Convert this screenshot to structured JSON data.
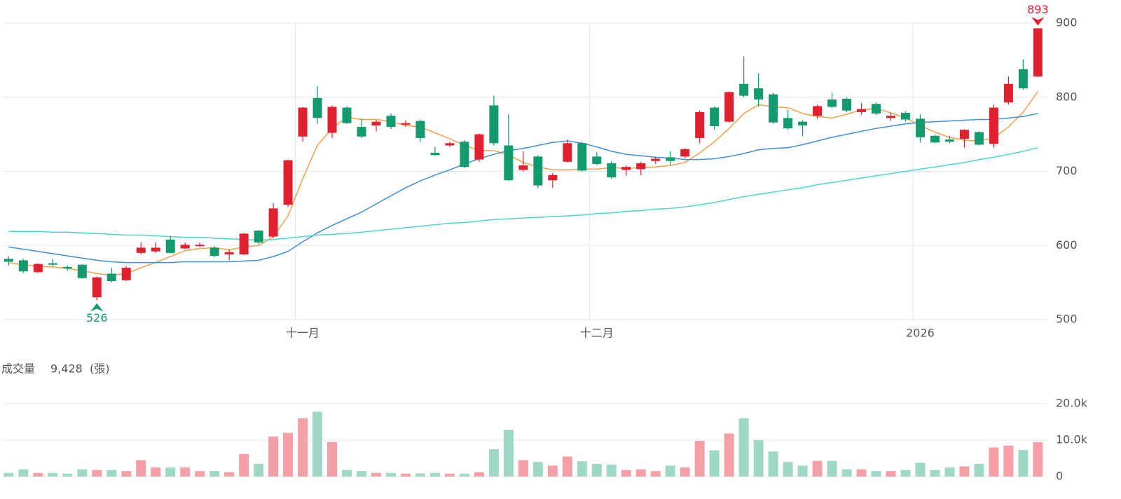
{
  "chart_data": [
    {
      "type": "candlestick",
      "categories": [
        null,
        null,
        null,
        null,
        null,
        null,
        null,
        null,
        null,
        null,
        null,
        null,
        null,
        null,
        null,
        null,
        null,
        null,
        null,
        null,
        "十一月",
        null,
        null,
        null,
        null,
        null,
        null,
        null,
        null,
        null,
        null,
        null,
        null,
        null,
        null,
        null,
        null,
        null,
        null,
        null,
        "十二月",
        null,
        null,
        null,
        null,
        null,
        null,
        null,
        null,
        null,
        null,
        null,
        null,
        null,
        null,
        null,
        null,
        null,
        null,
        null,
        null,
        null,
        "2026",
        null,
        null,
        null,
        null,
        null,
        null,
        null,
        null
      ],
      "open": [
        582,
        580,
        564,
        576,
        571,
        574,
        530,
        562,
        553,
        590,
        592,
        608,
        596,
        600,
        597,
        588,
        588,
        620,
        612,
        655,
        747,
        799,
        752,
        786,
        760,
        762,
        775,
        763,
        768,
        725,
        735,
        740,
        716,
        789,
        735,
        702,
        720,
        688,
        713,
        738,
        720,
        711,
        702,
        703,
        714,
        719,
        720,
        745,
        786,
        767,
        818,
        812,
        804,
        772,
        767,
        775,
        797,
        798,
        780,
        791,
        772,
        779,
        771,
        748,
        743,
        744,
        753,
        737,
        793,
        838,
        828
      ],
      "high": [
        585,
        582,
        576,
        582,
        573,
        575,
        558,
        570,
        572,
        604,
        604,
        613,
        604,
        604,
        599,
        595,
        617,
        621,
        657,
        716,
        787,
        815,
        789,
        788,
        771,
        769,
        778,
        769,
        770,
        733,
        740,
        742,
        751,
        802,
        777,
        727,
        722,
        698,
        743,
        740,
        726,
        714,
        708,
        713,
        720,
        727,
        731,
        782,
        788,
        808,
        855,
        832,
        806,
        783,
        769,
        790,
        806,
        800,
        792,
        793,
        779,
        781,
        777,
        750,
        748,
        757,
        754,
        790,
        828,
        851,
        893
      ],
      "low": [
        573,
        563,
        563,
        572,
        566,
        555,
        526,
        550,
        552,
        588,
        590,
        589,
        595,
        598,
        584,
        580,
        587,
        602,
        610,
        652,
        740,
        764,
        745,
        764,
        745,
        754,
        757,
        760,
        740,
        721,
        733,
        704,
        713,
        735,
        687,
        700,
        677,
        678,
        712,
        700,
        708,
        690,
        694,
        695,
        710,
        708,
        718,
        738,
        756,
        766,
        800,
        787,
        764,
        756,
        748,
        771,
        785,
        780,
        776,
        776,
        768,
        767,
        739,
        738,
        738,
        732,
        735,
        732,
        790,
        810,
        827
      ],
      "close": [
        578,
        565,
        575,
        574,
        569,
        556,
        557,
        552,
        570,
        597,
        597,
        590,
        601,
        601,
        586,
        591,
        616,
        604,
        650,
        715,
        786,
        772,
        787,
        765,
        747,
        767,
        760,
        765,
        745,
        722,
        738,
        706,
        750,
        738,
        688,
        708,
        681,
        695,
        738,
        701,
        710,
        692,
        706,
        711,
        717,
        714,
        730,
        780,
        761,
        807,
        802,
        797,
        766,
        758,
        762,
        788,
        787,
        782,
        784,
        778,
        775,
        770,
        746,
        739,
        740,
        756,
        736,
        786,
        818,
        812,
        893
      ],
      "up_color": "#e0202e",
      "down_color": "#139a6e",
      "series": [
        {
          "color": "#f5a04b",
          "values": [
            577,
            574,
            572,
            571,
            569,
            566,
            562,
            560,
            562,
            570,
            577,
            585,
            593,
            596,
            597,
            594,
            598,
            600,
            612,
            640,
            690,
            735,
            758,
            773,
            770,
            770,
            767,
            762,
            760,
            752,
            744,
            735,
            728,
            728,
            722,
            712,
            706,
            702,
            702,
            703,
            703,
            705,
            704,
            705,
            706,
            708,
            712,
            725,
            740,
            758,
            778,
            790,
            787,
            786,
            778,
            774,
            772,
            777,
            783,
            785,
            779,
            772,
            762,
            753,
            746,
            742,
            741,
            745,
            760,
            780,
            808
          ]
        },
        {
          "color": "#3f8fdc",
          "values": [
            598,
            595,
            592,
            589,
            586,
            583,
            580,
            578,
            577,
            577,
            577,
            577,
            578,
            578,
            578,
            578,
            579,
            580,
            585,
            592,
            605,
            617,
            627,
            636,
            645,
            656,
            667,
            678,
            687,
            695,
            702,
            710,
            717,
            723,
            728,
            731,
            735,
            739,
            741,
            738,
            733,
            727,
            723,
            721,
            719,
            718,
            716,
            716,
            717,
            720,
            724,
            729,
            731,
            732,
            736,
            741,
            746,
            750,
            754,
            758,
            761,
            764,
            766,
            767,
            768,
            769,
            770,
            770,
            772,
            774,
            778
          ]
        },
        {
          "color": "#4dd6cc",
          "values": [
            619,
            619,
            619,
            618,
            618,
            617,
            616,
            615,
            614,
            614,
            613,
            612,
            611,
            611,
            610,
            609,
            608,
            607,
            608,
            610,
            612,
            614,
            615,
            616,
            618,
            620,
            622,
            624,
            626,
            628,
            630,
            631,
            633,
            635,
            636,
            637,
            638,
            639,
            640,
            641,
            643,
            644,
            646,
            647,
            649,
            650,
            652,
            655,
            658,
            662,
            666,
            669,
            672,
            675,
            678,
            682,
            685,
            688,
            691,
            694,
            697,
            700,
            703,
            706,
            709,
            712,
            716,
            719,
            723,
            727,
            732
          ]
        }
      ],
      "ylim": [
        500,
        900
      ],
      "yticks": [
        500,
        600,
        700,
        800,
        900
      ],
      "grid": true
    },
    {
      "type": "bar",
      "title": "成交量",
      "unit": "(張)",
      "values": [
        1000,
        2000,
        1000,
        1000,
        800,
        2000,
        1800,
        1800,
        1500,
        4500,
        2500,
        2500,
        2500,
        1500,
        1500,
        1200,
        6200,
        3500,
        11000,
        12000,
        16000,
        17800,
        9500,
        1800,
        1500,
        1000,
        1000,
        800,
        900,
        1000,
        800,
        800,
        1200,
        7500,
        12800,
        4500,
        4000,
        3000,
        5500,
        4200,
        3500,
        3300,
        1800,
        2000,
        1500,
        3000,
        2500,
        9800,
        7200,
        11800,
        16000,
        10000,
        6900,
        4000,
        3000,
        4300,
        4300,
        2000,
        2000,
        1500,
        1500,
        1800,
        3800,
        1800,
        2500,
        2800,
        3500,
        8000,
        8500,
        7300,
        9428
      ],
      "value_labels": [
        null,
        null,
        null,
        null,
        null,
        null,
        null,
        null,
        null,
        null,
        null,
        null,
        null,
        null,
        null,
        null,
        null,
        null,
        null,
        null,
        null,
        null,
        null,
        null,
        null,
        null,
        null,
        null,
        null,
        null,
        null,
        null,
        null,
        null,
        null,
        null,
        null,
        null,
        null,
        null,
        null,
        null,
        null,
        null,
        null,
        null,
        null,
        null,
        null,
        null,
        null,
        null,
        null,
        null,
        null,
        null,
        null,
        null,
        null,
        null,
        null,
        null,
        null,
        null,
        null,
        null,
        null,
        null,
        null,
        null,
        "9,428"
      ],
      "up_color": "#f4a0a6",
      "down_color": "#9ed9c3",
      "ylim": [
        0,
        20000
      ],
      "yticks": [
        0,
        {
          "value": 10000,
          "label": "10.0k"
        },
        {
          "value": 20000,
          "label": "20.0k"
        }
      ],
      "grid": true
    }
  ]
}
